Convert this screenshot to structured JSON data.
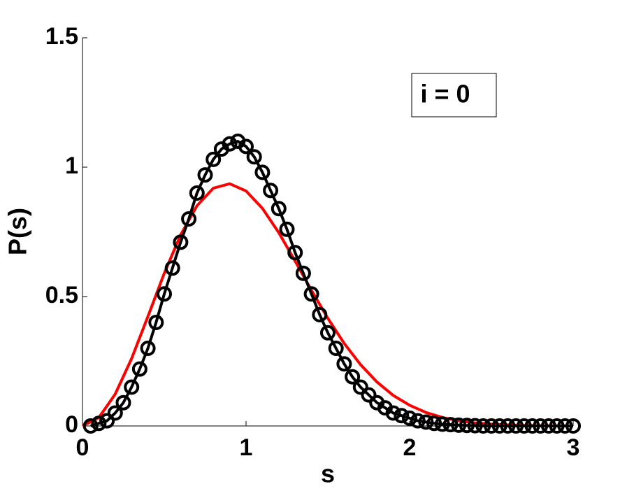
{
  "chart_data": {
    "type": "line",
    "xlabel": "s",
    "ylabel": "P(s)",
    "xlim": [
      0,
      3
    ],
    "ylim": [
      0,
      1.5
    ],
    "xticks": [
      0,
      1,
      2,
      3
    ],
    "yticks": [
      0,
      0.5,
      1,
      1.5
    ],
    "annotation": "i = 0",
    "series": [
      {
        "color": "#ff0000",
        "marker": "none",
        "x": [
          0,
          0.1,
          0.2,
          0.3,
          0.4,
          0.5,
          0.6,
          0.7,
          0.8,
          0.9,
          1.0,
          1.1,
          1.2,
          1.3,
          1.4,
          1.5,
          1.6,
          1.7,
          1.8,
          1.9,
          2.0,
          2.1,
          2.2,
          2.3,
          2.4,
          2.5,
          2.6,
          2.7,
          2.8,
          2.9,
          3.0
        ],
        "values": [
          0,
          0.032,
          0.123,
          0.26,
          0.423,
          0.59,
          0.738,
          0.851,
          0.919,
          0.936,
          0.908,
          0.841,
          0.747,
          0.637,
          0.524,
          0.416,
          0.319,
          0.237,
          0.17,
          0.118,
          0.08,
          0.052,
          0.033,
          0.02,
          0.012,
          0.007,
          0.004,
          0.002,
          0.001,
          0.0005,
          0.0003
        ]
      },
      {
        "color": "#000000",
        "marker": "circle",
        "x": [
          0.05,
          0.1,
          0.15,
          0.2,
          0.25,
          0.3,
          0.35,
          0.4,
          0.45,
          0.5,
          0.55,
          0.6,
          0.65,
          0.7,
          0.75,
          0.8,
          0.85,
          0.9,
          0.95,
          1.0,
          1.05,
          1.1,
          1.15,
          1.2,
          1.25,
          1.3,
          1.35,
          1.4,
          1.45,
          1.5,
          1.55,
          1.6,
          1.65,
          1.7,
          1.75,
          1.8,
          1.85,
          1.9,
          1.95,
          2.0,
          2.05,
          2.1,
          2.15,
          2.2,
          2.25,
          2.3,
          2.35,
          2.4,
          2.45,
          2.5,
          2.55,
          2.6,
          2.65,
          2.7,
          2.75,
          2.8,
          2.85,
          2.9,
          2.95,
          3.0
        ],
        "values": [
          0,
          0.01,
          0.02,
          0.05,
          0.09,
          0.15,
          0.22,
          0.3,
          0.4,
          0.51,
          0.61,
          0.71,
          0.8,
          0.9,
          0.97,
          1.03,
          1.07,
          1.09,
          1.1,
          1.08,
          1.04,
          0.98,
          0.91,
          0.84,
          0.76,
          0.67,
          0.59,
          0.51,
          0.43,
          0.36,
          0.3,
          0.24,
          0.19,
          0.15,
          0.12,
          0.09,
          0.07,
          0.05,
          0.04,
          0.03,
          0.02,
          0.015,
          0.01,
          0.007,
          0.005,
          0.003,
          0.002,
          0.001,
          0,
          0,
          0,
          0,
          0,
          0,
          0,
          0,
          0,
          0,
          0,
          0
        ]
      }
    ]
  }
}
